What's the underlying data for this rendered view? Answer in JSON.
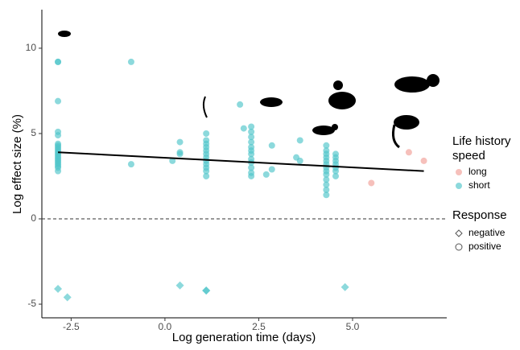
{
  "chart_data": {
    "type": "scatter",
    "x_label": "Log generation time (days)",
    "y_label": "Log effect size (%)",
    "xlim": [
      -3.28,
      7.51
    ],
    "ylim": [
      -5.8,
      12.26
    ],
    "xticks": [
      -2.5,
      {
        "value": 0,
        "label": "0.0"
      },
      2.5,
      {
        "value": 5,
        "label": "5.0"
      }
    ],
    "yticks": [
      -5,
      0,
      5,
      10
    ],
    "reference_y": 0,
    "color_legend": {
      "title": [
        "Life history",
        "speed"
      ],
      "entries": [
        {
          "label": "long",
          "color": "#f19e97"
        },
        {
          "label": "short",
          "color": "#4fc4c9"
        }
      ]
    },
    "shape_legend": {
      "title": "Response",
      "entries": [
        {
          "label": "negative",
          "shape": "diamond"
        },
        {
          "label": "positive",
          "shape": "circle"
        }
      ]
    },
    "series": [
      {
        "name": "long",
        "response": "positive",
        "color": "#f19e97",
        "x": [
          5.5,
          6.5,
          6.9
        ],
        "values": [
          2.1,
          3.9,
          3.4
        ]
      },
      {
        "name": "short",
        "response": "positive",
        "color": "#4fc4c9",
        "x": [
          -2.85,
          -2.85,
          -2.85,
          -2.85,
          -2.85,
          -2.85,
          -2.85,
          -2.85,
          -2.85,
          -2.85,
          -2.85,
          -2.85,
          -2.85,
          -2.85,
          -2.85,
          -2.85,
          -2.85,
          -2.85,
          -2.85,
          -2.85,
          -2.85,
          -0.9,
          -0.9,
          0.2,
          0.4,
          0.4,
          0.4,
          1.1,
          1.1,
          1.1,
          1.1,
          1.1,
          1.1,
          1.1,
          1.1,
          1.1,
          1.1,
          1.1,
          1.1,
          2.0,
          2.1,
          2.3,
          2.3,
          2.3,
          2.3,
          2.3,
          2.3,
          2.3,
          2.3,
          2.3,
          2.3,
          2.3,
          2.3,
          2.7,
          2.85,
          2.85,
          3.5,
          3.6,
          3.6,
          4.3,
          4.3,
          4.3,
          4.3,
          4.3,
          4.3,
          4.3,
          4.3,
          4.3,
          4.3,
          4.3,
          4.3,
          4.3,
          4.55,
          4.55,
          4.55,
          4.55,
          4.55,
          4.55,
          4.55
        ],
        "values": [
          2.8,
          3.0,
          3.1,
          3.2,
          3.3,
          3.4,
          3.5,
          3.6,
          3.7,
          3.8,
          3.9,
          4.0,
          4.1,
          4.2,
          4.3,
          4.4,
          4.9,
          5.1,
          6.9,
          9.2,
          9.2,
          9.2,
          3.2,
          3.4,
          3.8,
          3.9,
          4.5,
          2.5,
          2.8,
          3.0,
          3.2,
          3.4,
          3.6,
          3.8,
          4.0,
          4.2,
          4.4,
          4.6,
          5.0,
          6.7,
          5.3,
          2.5,
          2.7,
          3.0,
          3.3,
          3.5,
          3.8,
          4.0,
          4.2,
          4.5,
          4.8,
          5.1,
          5.4,
          2.6,
          2.9,
          4.3,
          3.6,
          4.6,
          3.4,
          1.4,
          1.7,
          2.0,
          2.3,
          2.6,
          2.8,
          3.0,
          3.2,
          3.4,
          3.6,
          3.8,
          4.0,
          4.3,
          2.5,
          2.8,
          3.0,
          3.2,
          3.4,
          3.6,
          3.8
        ]
      },
      {
        "name": "short",
        "response": "negative",
        "color": "#4fc4c9",
        "x": [
          -2.85,
          -2.6,
          0.4,
          1.1,
          1.1,
          4.8
        ],
        "values": [
          -4.1,
          -4.6,
          -3.9,
          -4.2,
          -4.2,
          -4.0
        ]
      }
    ],
    "trend": {
      "x": [
        -2.85,
        6.9
      ],
      "values": [
        3.9,
        2.8
      ]
    }
  }
}
